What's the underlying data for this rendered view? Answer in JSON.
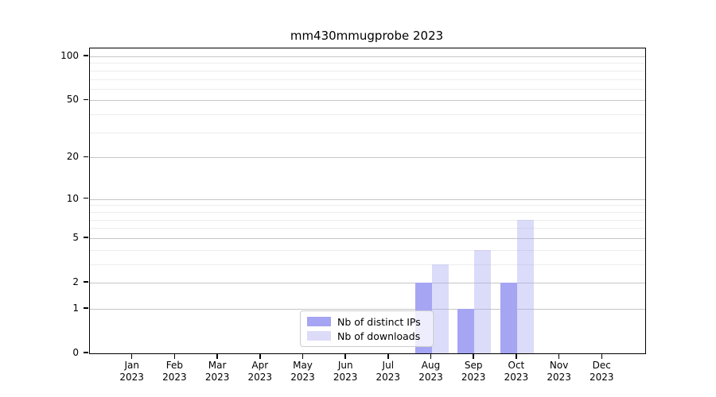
{
  "chart_data": {
    "type": "bar",
    "title": "mm430mmugprobe 2023",
    "categories": [
      "Jan 2023",
      "Feb 2023",
      "Mar 2023",
      "Apr 2023",
      "May 2023",
      "Jun 2023",
      "Jul 2023",
      "Aug 2023",
      "Sep 2023",
      "Oct 2023",
      "Nov 2023",
      "Dec 2023"
    ],
    "series": [
      {
        "name": "Nb of distinct IPs",
        "color": "#a5a5f3",
        "values": [
          0,
          0,
          0,
          0,
          0,
          0,
          0,
          2,
          1,
          2,
          0,
          0
        ]
      },
      {
        "name": "Nb of downloads",
        "color": "#dcdcf8",
        "values": [
          0,
          0,
          0,
          0,
          0,
          0,
          0,
          3,
          4,
          7,
          0,
          0
        ]
      }
    ],
    "xlabel": "",
    "ylabel": "",
    "yscale": "log1p",
    "ylim": [
      0,
      114
    ],
    "yticks_major": [
      0,
      1,
      2,
      5,
      10,
      20,
      50,
      100
    ],
    "yticks_minor": [
      3,
      4,
      6,
      7,
      8,
      9,
      30,
      40,
      60,
      70,
      80,
      90
    ],
    "grid": "on",
    "legend_position": "bottom-center-inside"
  }
}
